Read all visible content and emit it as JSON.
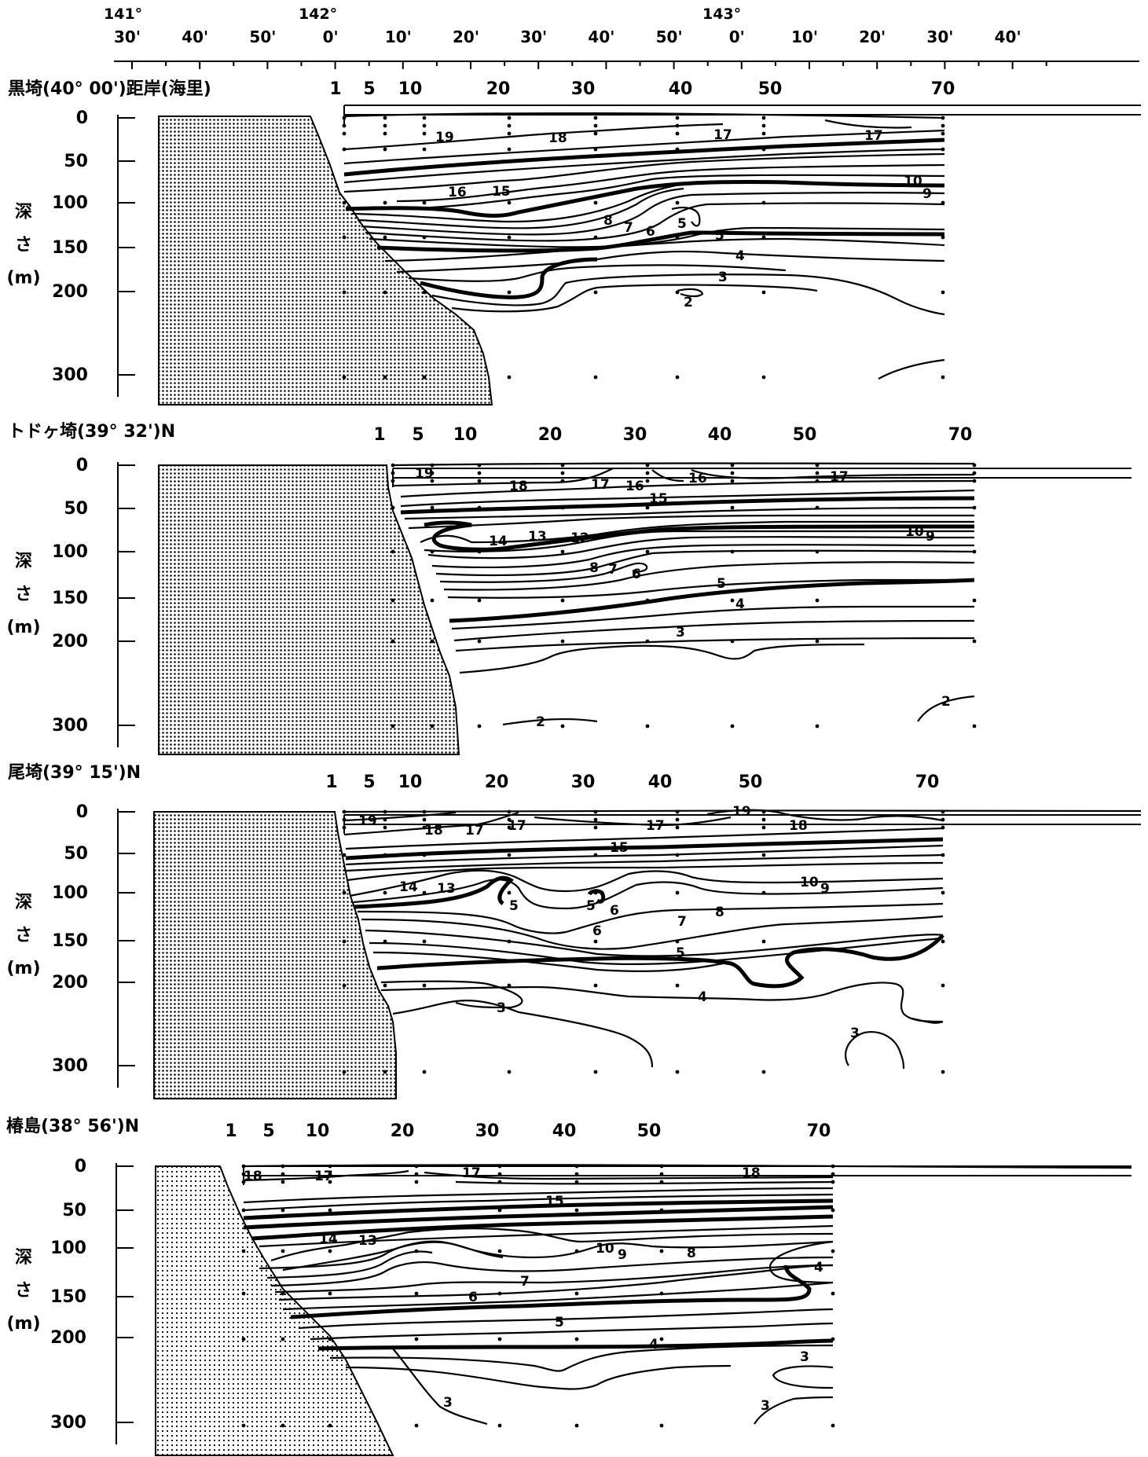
{
  "longitude_axis": {
    "degree_labels": [
      "141°",
      "142°",
      "143°"
    ],
    "minute_labels": [
      "30'",
      "40'",
      "50'",
      "0'",
      "10'",
      "20'",
      "30'",
      "40'",
      "50'",
      "0'",
      "10'",
      "20'",
      "30'",
      "40'"
    ]
  },
  "depth_axis": {
    "ticks": [
      "0",
      "50",
      "100",
      "150",
      "200",
      "300"
    ],
    "label_chars": [
      "深",
      "さ",
      "(m)"
    ]
  },
  "distance_ticks": [
    "1",
    "5",
    "10",
    "20",
    "30",
    "40",
    "50",
    "70"
  ],
  "sections": [
    {
      "title": "黒埼(40° 00')距岸(海里)",
      "contour_labels": [
        "19",
        "18",
        "17",
        "17",
        "16",
        "15",
        "10",
        "9",
        "8",
        "7",
        "6",
        "5",
        "5",
        "4",
        "3",
        "2"
      ]
    },
    {
      "title": "トドヶ埼(39° 32')N",
      "contour_labels": [
        "19",
        "18",
        "17",
        "16",
        "16",
        "17",
        "15",
        "14",
        "13",
        "12",
        "10",
        "9",
        "8",
        "7",
        "6",
        "5",
        "4",
        "3",
        "2",
        "2"
      ]
    },
    {
      "title": "尾埼(39° 15')N",
      "contour_labels": [
        "19",
        "18",
        "17",
        "17",
        "17",
        "19",
        "18",
        "15",
        "14",
        "13",
        "10",
        "9",
        "5",
        "5",
        "6",
        "7",
        "8",
        "6",
        "5",
        "4",
        "3",
        "3"
      ]
    },
    {
      "title": "椿島(38° 56')N",
      "contour_labels": [
        "18",
        "17",
        "17",
        "18",
        "15",
        "14",
        "13",
        "10",
        "9",
        "8",
        "4",
        "7",
        "6",
        "5",
        "4",
        "3",
        "3",
        "3"
      ]
    }
  ]
}
